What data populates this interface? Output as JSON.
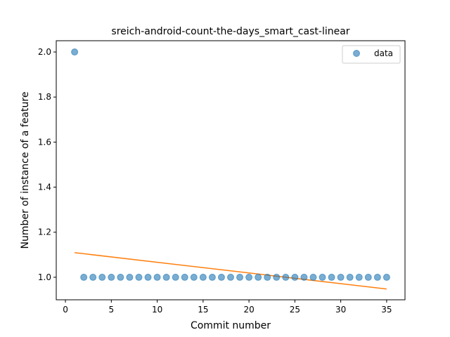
{
  "chart_data": {
    "type": "scatter",
    "title": "sreich-android-count-the-days_smart_cast-linear",
    "xlabel": "Commit number",
    "ylabel": "Number of instance of a feature",
    "xlim": [
      -1,
      37
    ],
    "ylim": [
      0.9,
      2.05
    ],
    "xticks": [
      0,
      5,
      10,
      15,
      20,
      25,
      30,
      35
    ],
    "yticks": [
      1.0,
      1.2,
      1.4,
      1.6,
      1.8,
      2.0
    ],
    "ytick_labels": [
      "1.0",
      "1.2",
      "1.4",
      "1.6",
      "1.8",
      "2.0"
    ],
    "grid": false,
    "legend_position": "top-right",
    "series": [
      {
        "name": "data",
        "kind": "scatter",
        "color": "#1f77b4",
        "x": [
          1,
          2,
          3,
          4,
          5,
          6,
          7,
          8,
          9,
          10,
          11,
          12,
          13,
          14,
          15,
          16,
          17,
          18,
          19,
          20,
          21,
          22,
          23,
          24,
          25,
          26,
          27,
          28,
          29,
          30,
          31,
          32,
          33,
          34,
          35
        ],
        "y": [
          2,
          1,
          1,
          1,
          1,
          1,
          1,
          1,
          1,
          1,
          1,
          1,
          1,
          1,
          1,
          1,
          1,
          1,
          1,
          1,
          1,
          1,
          1,
          1,
          1,
          1,
          1,
          1,
          1,
          1,
          1,
          1,
          1,
          1,
          1
        ]
      },
      {
        "kind": "line",
        "color": "#ff7f0e",
        "x": [
          1,
          35
        ],
        "y": [
          1.1092,
          0.9479
        ]
      }
    ]
  }
}
